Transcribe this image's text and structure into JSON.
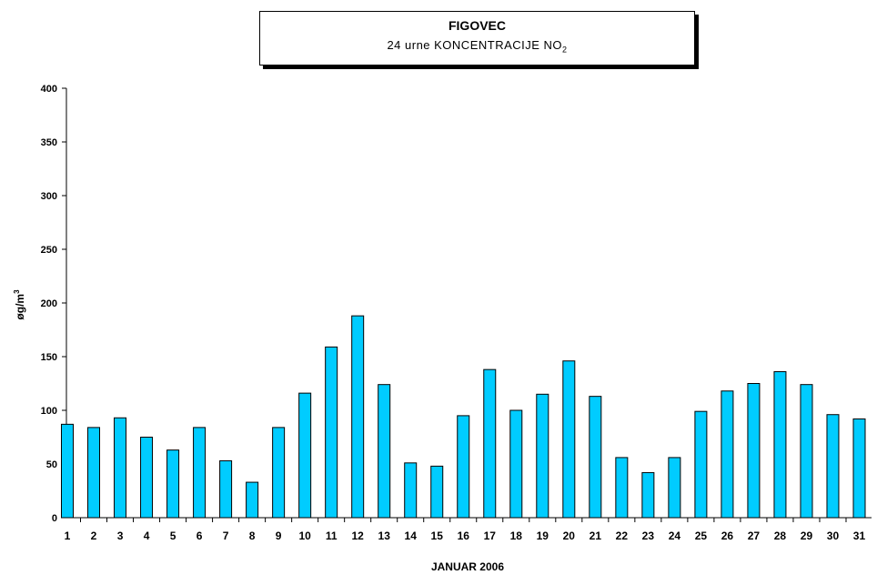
{
  "title": {
    "main": "FIGOVEC",
    "sub_prefix": "24 urne  KONCENTRACIJE  NO",
    "sub_subscript": "2"
  },
  "chart_data": {
    "type": "bar",
    "title": "FIGOVEC",
    "subtitle": "24 urne KONCENTRACIJE NO2",
    "xlabel": "JANUAR 2006",
    "ylabel": "øg/m³",
    "ylabel_base": "øg/m",
    "ylabel_sup": "3",
    "ylim": [
      0,
      400
    ],
    "yticks": [
      0,
      50,
      100,
      150,
      200,
      250,
      300,
      350,
      400
    ],
    "categories": [
      "1",
      "2",
      "3",
      "4",
      "5",
      "6",
      "7",
      "8",
      "9",
      "10",
      "11",
      "12",
      "13",
      "14",
      "15",
      "16",
      "17",
      "18",
      "19",
      "20",
      "21",
      "22",
      "23",
      "24",
      "25",
      "26",
      "27",
      "28",
      "29",
      "30",
      "31"
    ],
    "values": [
      87,
      84,
      93,
      75,
      63,
      84,
      53,
      33,
      84,
      116,
      159,
      188,
      124,
      51,
      48,
      95,
      138,
      100,
      115,
      146,
      113,
      56,
      42,
      56,
      99,
      118,
      125,
      136,
      124,
      96,
      92
    ],
    "bar_color": "#00ccff",
    "grid": false,
    "legend": "none"
  }
}
